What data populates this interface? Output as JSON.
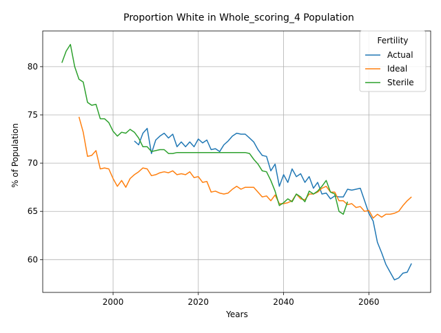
{
  "chart_data": {
    "type": "line",
    "title": "Proportion White in Whole_scoring_4 Population",
    "xlabel": "Years",
    "ylabel": "% of Population",
    "xlim": [
      1983.5,
      2074.5
    ],
    "ylim": [
      56.6,
      83.7
    ],
    "xticks": [
      2000,
      2020,
      2040,
      2060
    ],
    "yticks": [
      60,
      65,
      70,
      75,
      80
    ],
    "grid": true,
    "legend": {
      "title": "Fertility",
      "position": "top-right"
    },
    "series": [
      {
        "name": "Actual",
        "color": "#1f77b4",
        "x": [
          2005,
          2006,
          2007,
          2008,
          2009,
          2010,
          2011,
          2012,
          2013,
          2014,
          2015,
          2016,
          2017,
          2018,
          2019,
          2020,
          2021,
          2022,
          2023,
          2024,
          2025,
          2026,
          2027,
          2028,
          2029,
          2030,
          2031,
          2032,
          2033,
          2034,
          2035,
          2036,
          2037,
          2038,
          2039,
          2040,
          2041,
          2042,
          2043,
          2044,
          2045,
          2046,
          2047,
          2048,
          2049,
          2050,
          2051,
          2052,
          2053,
          2054,
          2055,
          2056,
          2057,
          2058,
          2059,
          2060,
          2061,
          2062,
          2063,
          2064,
          2065,
          2066,
          2067,
          2068,
          2069,
          2070
        ],
        "values": [
          72.3,
          71.9,
          73.1,
          73.6,
          71.0,
          72.4,
          72.8,
          73.1,
          72.6,
          73.0,
          71.7,
          72.2,
          71.7,
          72.2,
          71.7,
          72.5,
          72.1,
          72.4,
          71.4,
          71.5,
          71.2,
          71.9,
          72.3,
          72.8,
          73.1,
          73.0,
          73.0,
          72.6,
          72.2,
          71.4,
          70.8,
          70.7,
          69.2,
          69.9,
          67.6,
          68.8,
          68.0,
          69.4,
          68.6,
          68.9,
          68.0,
          68.6,
          67.4,
          68.0,
          66.8,
          66.9,
          66.3,
          66.6,
          66.5,
          66.5,
          67.3,
          67.2,
          67.3,
          67.4,
          66.1,
          64.8,
          64.0,
          61.8,
          60.7,
          59.5,
          58.7,
          57.9,
          58.1,
          58.6,
          58.7,
          59.6
        ]
      },
      {
        "name": "Ideal",
        "color": "#ff7f0e",
        "x": [
          1992,
          1993,
          1994,
          1995,
          1996,
          1997,
          1998,
          1999,
          2000,
          2001,
          2002,
          2003,
          2004,
          2005,
          2006,
          2007,
          2008,
          2009,
          2010,
          2011,
          2012,
          2013,
          2014,
          2015,
          2016,
          2017,
          2018,
          2019,
          2020,
          2021,
          2022,
          2023,
          2024,
          2025,
          2026,
          2027,
          2028,
          2029,
          2030,
          2031,
          2032,
          2033,
          2034,
          2035,
          2036,
          2037,
          2038,
          2039,
          2040,
          2041,
          2042,
          2043,
          2044,
          2045,
          2046,
          2047,
          2048,
          2049,
          2050,
          2051,
          2052,
          2053,
          2054,
          2055,
          2056,
          2057,
          2058,
          2059,
          2060,
          2061,
          2062,
          2063,
          2064,
          2065,
          2066,
          2067,
          2068,
          2069,
          2070
        ],
        "values": [
          74.8,
          73.2,
          70.7,
          70.8,
          71.3,
          69.4,
          69.5,
          69.4,
          68.4,
          67.6,
          68.2,
          67.5,
          68.4,
          68.8,
          69.1,
          69.5,
          69.4,
          68.7,
          68.8,
          69.0,
          69.1,
          69.0,
          69.2,
          68.8,
          68.9,
          68.8,
          69.1,
          68.5,
          68.6,
          68.0,
          68.1,
          67.0,
          67.1,
          66.9,
          66.8,
          66.9,
          67.3,
          67.6,
          67.3,
          67.5,
          67.5,
          67.5,
          67.0,
          66.5,
          66.6,
          66.1,
          66.7,
          65.8,
          65.8,
          65.9,
          66.1,
          66.8,
          66.3,
          66.2,
          66.8,
          66.8,
          67.0,
          67.4,
          67.6,
          67.0,
          67.0,
          66.1,
          66.1,
          65.7,
          65.8,
          65.4,
          65.5,
          65.0,
          65.1,
          64.3,
          64.7,
          64.4,
          64.7,
          64.7,
          64.8,
          65.0,
          65.6,
          66.1,
          66.5
        ]
      },
      {
        "name": "Sterile",
        "color": "#2ca02c",
        "x": [
          1988,
          1989,
          1990,
          1991,
          1992,
          1993,
          1994,
          1995,
          1996,
          1997,
          1998,
          1999,
          2000,
          2001,
          2002,
          2003,
          2004,
          2005,
          2006,
          2007,
          2008,
          2009,
          2010,
          2011,
          2012,
          2013,
          2014,
          2015,
          2016,
          2017,
          2018,
          2019,
          2020,
          2021,
          2022,
          2023,
          2024,
          2025,
          2026,
          2027,
          2028,
          2029,
          2030,
          2031,
          2032,
          2033,
          2034,
          2035,
          2036,
          2037,
          2038,
          2039,
          2040,
          2041,
          2042,
          2043,
          2044,
          2045,
          2046,
          2047,
          2048,
          2049,
          2050,
          2051,
          2052,
          2053,
          2054,
          2055
        ],
        "values": [
          80.4,
          81.6,
          82.3,
          80.0,
          78.7,
          78.4,
          76.3,
          76.0,
          76.1,
          74.6,
          74.6,
          74.2,
          73.3,
          72.8,
          73.2,
          73.1,
          73.5,
          73.2,
          72.6,
          71.7,
          71.7,
          71.2,
          71.3,
          71.4,
          71.4,
          71.0,
          71.0,
          71.1,
          71.1,
          71.1,
          71.1,
          71.1,
          71.1,
          71.1,
          71.1,
          71.1,
          71.1,
          71.1,
          71.1,
          71.1,
          71.1,
          71.1,
          71.1,
          71.1,
          71.0,
          70.4,
          69.9,
          69.2,
          69.1,
          68.2,
          67.1,
          65.6,
          65.9,
          66.3,
          66.0,
          66.8,
          66.5,
          66.0,
          67.1,
          66.8,
          67.1,
          67.6,
          68.2,
          67.0,
          66.8,
          65.0,
          64.7,
          66.0
        ]
      }
    ]
  }
}
